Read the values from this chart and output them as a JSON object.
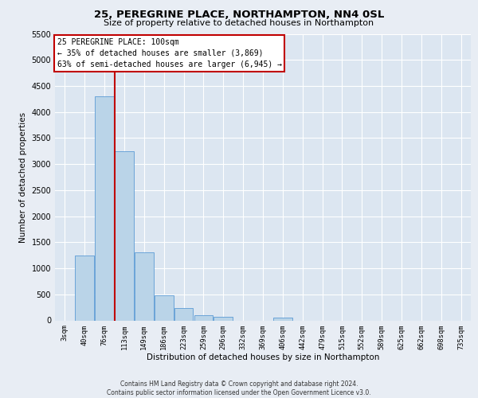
{
  "title1": "25, PEREGRINE PLACE, NORTHAMPTON, NN4 0SL",
  "title2": "Size of property relative to detached houses in Northampton",
  "xlabel": "Distribution of detached houses by size in Northampton",
  "ylabel": "Number of detached properties",
  "bin_labels": [
    "3sqm",
    "40sqm",
    "76sqm",
    "113sqm",
    "149sqm",
    "186sqm",
    "223sqm",
    "259sqm",
    "296sqm",
    "332sqm",
    "369sqm",
    "406sqm",
    "442sqm",
    "479sqm",
    "515sqm",
    "552sqm",
    "589sqm",
    "625sqm",
    "662sqm",
    "698sqm",
    "735sqm"
  ],
  "bar_heights": [
    0,
    1250,
    4300,
    3250,
    1300,
    480,
    230,
    100,
    65,
    0,
    0,
    60,
    0,
    0,
    0,
    0,
    0,
    0,
    0,
    0,
    0
  ],
  "bar_color": "#bad4e8",
  "bar_edge_color": "#5b9bd5",
  "ylim": [
    0,
    5500
  ],
  "yticks": [
    0,
    500,
    1000,
    1500,
    2000,
    2500,
    3000,
    3500,
    4000,
    4500,
    5000,
    5500
  ],
  "vline_color": "#c00000",
  "vline_x_index": 2.5,
  "annotation_box_text": [
    "25 PEREGRINE PLACE: 100sqm",
    "← 35% of detached houses are smaller (3,869)",
    "63% of semi-detached houses are larger (6,945) →"
  ],
  "annotation_box_color": "#ffffff",
  "annotation_box_edge": "#c00000",
  "footer1": "Contains HM Land Registry data © Crown copyright and database right 2024.",
  "footer2": "Contains public sector information licensed under the Open Government Licence v3.0.",
  "bg_color": "#dce6f1",
  "plot_bg_color": "#dce6f1",
  "outer_bg_color": "#e8edf4"
}
